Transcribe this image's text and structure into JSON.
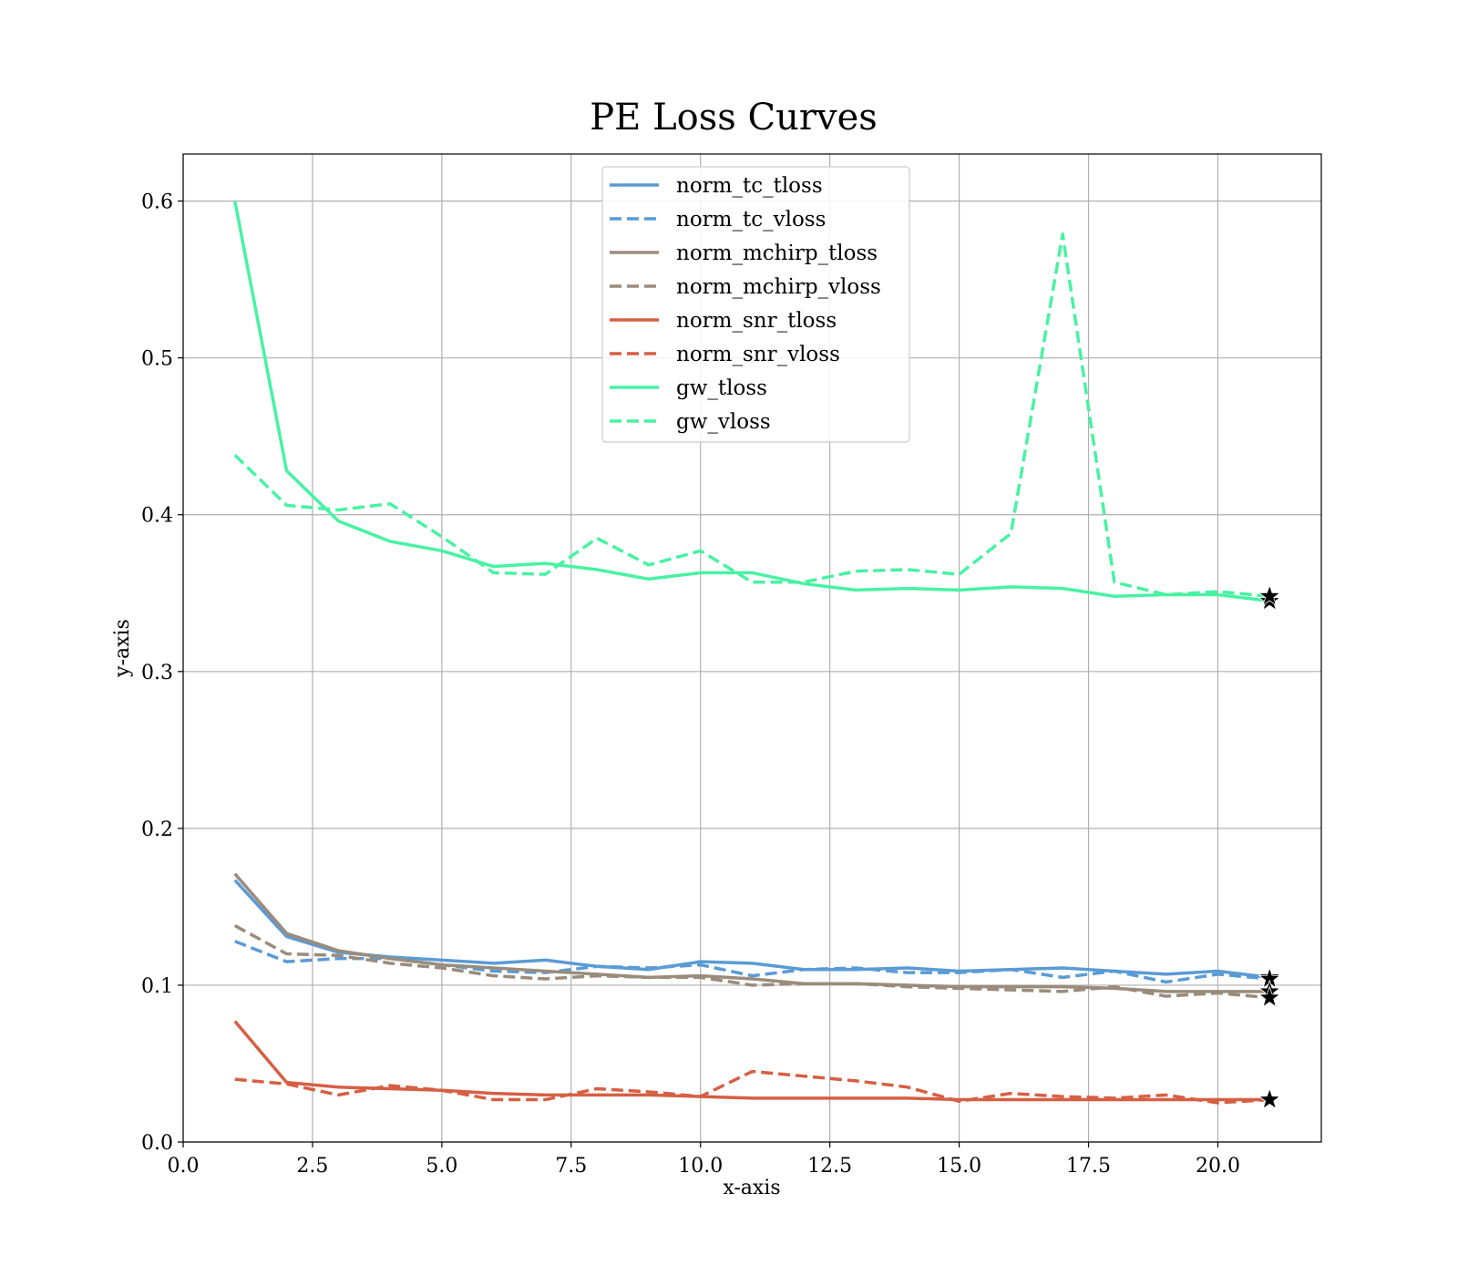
{
  "chart_data": {
    "type": "line",
    "title": "PE Loss Curves",
    "xlabel": "x-axis",
    "ylabel": "y-axis",
    "xlim": [
      0,
      22
    ],
    "ylim": [
      0,
      0.63
    ],
    "xticks": [
      "0.0",
      "2.5",
      "5.0",
      "7.5",
      "10.0",
      "12.5",
      "15.0",
      "17.5",
      "20.0"
    ],
    "yticks": [
      "0.0",
      "0.1",
      "0.2",
      "0.3",
      "0.4",
      "0.5",
      "0.6"
    ],
    "grid": true,
    "legend_position": "top-center",
    "x": [
      1,
      2,
      3,
      4,
      5,
      6,
      7,
      8,
      9,
      10,
      11,
      12,
      13,
      14,
      15,
      16,
      17,
      18,
      19,
      20,
      21
    ],
    "series": [
      {
        "name": "norm_tc_tloss",
        "color": "#5a9bd5",
        "dash": "solid",
        "values": [
          0.167,
          0.131,
          0.121,
          0.118,
          0.116,
          0.114,
          0.116,
          0.112,
          0.11,
          0.115,
          0.114,
          0.11,
          0.11,
          0.111,
          0.109,
          0.11,
          0.111,
          0.109,
          0.107,
          0.109,
          0.105
        ]
      },
      {
        "name": "norm_tc_vloss",
        "color": "#5a9bd5",
        "dash": "dashed",
        "values": [
          0.128,
          0.115,
          0.117,
          0.117,
          0.113,
          0.109,
          0.108,
          0.112,
          0.111,
          0.113,
          0.106,
          0.11,
          0.111,
          0.108,
          0.108,
          0.11,
          0.105,
          0.109,
          0.102,
          0.107,
          0.104
        ]
      },
      {
        "name": "norm_mchirp_tloss",
        "color": "#9a8c7c",
        "dash": "solid",
        "values": [
          0.171,
          0.133,
          0.122,
          0.117,
          0.113,
          0.111,
          0.109,
          0.107,
          0.105,
          0.106,
          0.104,
          0.101,
          0.101,
          0.1,
          0.099,
          0.099,
          0.099,
          0.098,
          0.096,
          0.096,
          0.096
        ]
      },
      {
        "name": "norm_mchirp_vloss",
        "color": "#9a8c7c",
        "dash": "dashed",
        "values": [
          0.138,
          0.12,
          0.119,
          0.114,
          0.111,
          0.106,
          0.104,
          0.106,
          0.105,
          0.105,
          0.1,
          0.101,
          0.101,
          0.099,
          0.098,
          0.097,
          0.096,
          0.099,
          0.093,
          0.095,
          0.092
        ]
      },
      {
        "name": "norm_snr_tloss",
        "color": "#d65f43",
        "dash": "solid",
        "values": [
          0.077,
          0.038,
          0.035,
          0.034,
          0.033,
          0.031,
          0.03,
          0.03,
          0.03,
          0.029,
          0.028,
          0.028,
          0.028,
          0.028,
          0.027,
          0.027,
          0.027,
          0.027,
          0.027,
          0.027,
          0.027
        ]
      },
      {
        "name": "norm_snr_vloss",
        "color": "#d65f43",
        "dash": "dashed",
        "values": [
          0.04,
          0.037,
          0.03,
          0.036,
          0.033,
          0.027,
          0.027,
          0.034,
          0.032,
          0.029,
          0.045,
          0.042,
          0.039,
          0.035,
          0.026,
          0.031,
          0.029,
          0.028,
          0.03,
          0.025,
          0.027
        ]
      },
      {
        "name": "gw_tloss",
        "color": "#48f2a2",
        "dash": "solid",
        "values": [
          0.6,
          0.428,
          0.396,
          0.383,
          0.377,
          0.367,
          0.369,
          0.365,
          0.359,
          0.363,
          0.363,
          0.356,
          0.352,
          0.353,
          0.352,
          0.354,
          0.353,
          0.348,
          0.349,
          0.349,
          0.345
        ]
      },
      {
        "name": "gw_vloss",
        "color": "#48f2a2",
        "dash": "dashed",
        "values": [
          0.438,
          0.406,
          0.403,
          0.407,
          0.386,
          0.363,
          0.362,
          0.385,
          0.368,
          0.377,
          0.357,
          0.357,
          0.364,
          0.365,
          0.362,
          0.388,
          0.579,
          0.357,
          0.349,
          0.351,
          0.348
        ]
      }
    ],
    "markers": {
      "symbol": "star",
      "color": "#000000",
      "points": [
        [
          21,
          0.105
        ],
        [
          21,
          0.104
        ],
        [
          21,
          0.096
        ],
        [
          21,
          0.092
        ],
        [
          21,
          0.027
        ],
        [
          21,
          0.027
        ],
        [
          21,
          0.345
        ],
        [
          21,
          0.348
        ]
      ]
    }
  }
}
